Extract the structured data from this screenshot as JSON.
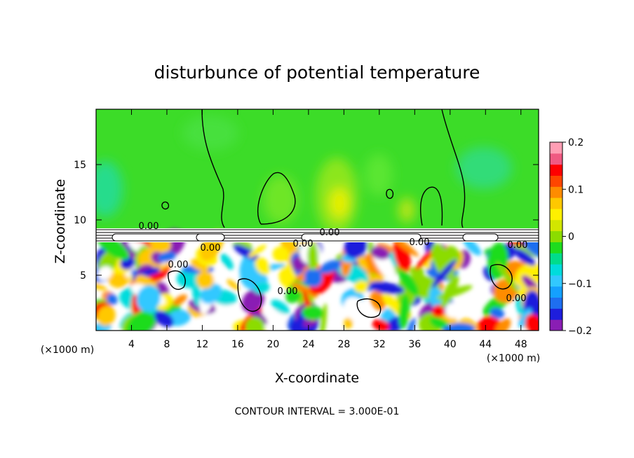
{
  "chart_data": {
    "type": "heatmap",
    "title": "disturbunce of potential temperature",
    "xlabel": "X-coordinate",
    "ylabel": "Z-coordinate",
    "x_unit_label": "(×1000 m)",
    "y_unit_label": "(×1000 m)",
    "xlim": [
      0,
      50
    ],
    "ylim": [
      0,
      20
    ],
    "x_ticks": [
      4,
      8,
      12,
      16,
      20,
      24,
      28,
      32,
      36,
      40,
      44,
      48
    ],
    "y_ticks": [
      5,
      10,
      15
    ],
    "colorbar": {
      "range": [
        -0.2,
        0.2
      ],
      "tick_values": [
        0.2,
        0.1,
        0,
        -0.1,
        -0.2
      ],
      "tick_labels": [
        "0.2",
        "0.1",
        "0",
        "−0.1",
        "−0.2"
      ],
      "colors": [
        "#8a1eb4",
        "#1e1edc",
        "#1e6ef0",
        "#14a0ff",
        "#32c8ff",
        "#00dcdc",
        "#00dc8c",
        "#1edc1e",
        "#8cdc00",
        "#d2e600",
        "#fff000",
        "#ffc800",
        "#ff8c00",
        "#ff4600",
        "#ff0000",
        "#f05a82",
        "#ff9eb4"
      ]
    },
    "contour_labels": [
      "0.00",
      "0.00",
      "0.00",
      "0.00",
      "0.00",
      "0.00",
      "0.00",
      "0.00",
      "0.00"
    ],
    "contour_interval_text": "CONTOUR INTERVAL = 3.000E-01"
  }
}
